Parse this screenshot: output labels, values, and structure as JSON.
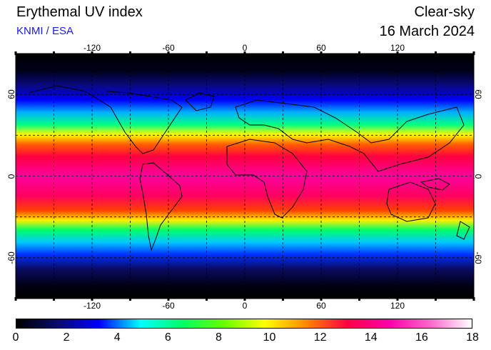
{
  "header": {
    "title": "Erythemal UV index",
    "credit": "KNMI / ESA",
    "mode": "Clear-sky",
    "date": "16 March 2024"
  },
  "map": {
    "lon_ticks": [
      "-120",
      "-60",
      "0",
      "60",
      "120"
    ],
    "lat_ticks": [
      "60",
      "0",
      "-60"
    ],
    "lon_range": [
      -180,
      180
    ],
    "lat_range": [
      -90,
      90
    ],
    "grid": true
  },
  "colorbar": {
    "labels": [
      "0",
      "2",
      "4",
      "6",
      "8",
      "10",
      "12",
      "14",
      "16",
      "18"
    ],
    "range": [
      0,
      18
    ],
    "colors": [
      "#000000",
      "#0a0a6e",
      "#0000ff",
      "#00ffff",
      "#00ff66",
      "#66ff00",
      "#ffff00",
      "#ff8800",
      "#ff0044",
      "#ff00aa",
      "#ff66cc",
      "#ffffff"
    ]
  }
}
